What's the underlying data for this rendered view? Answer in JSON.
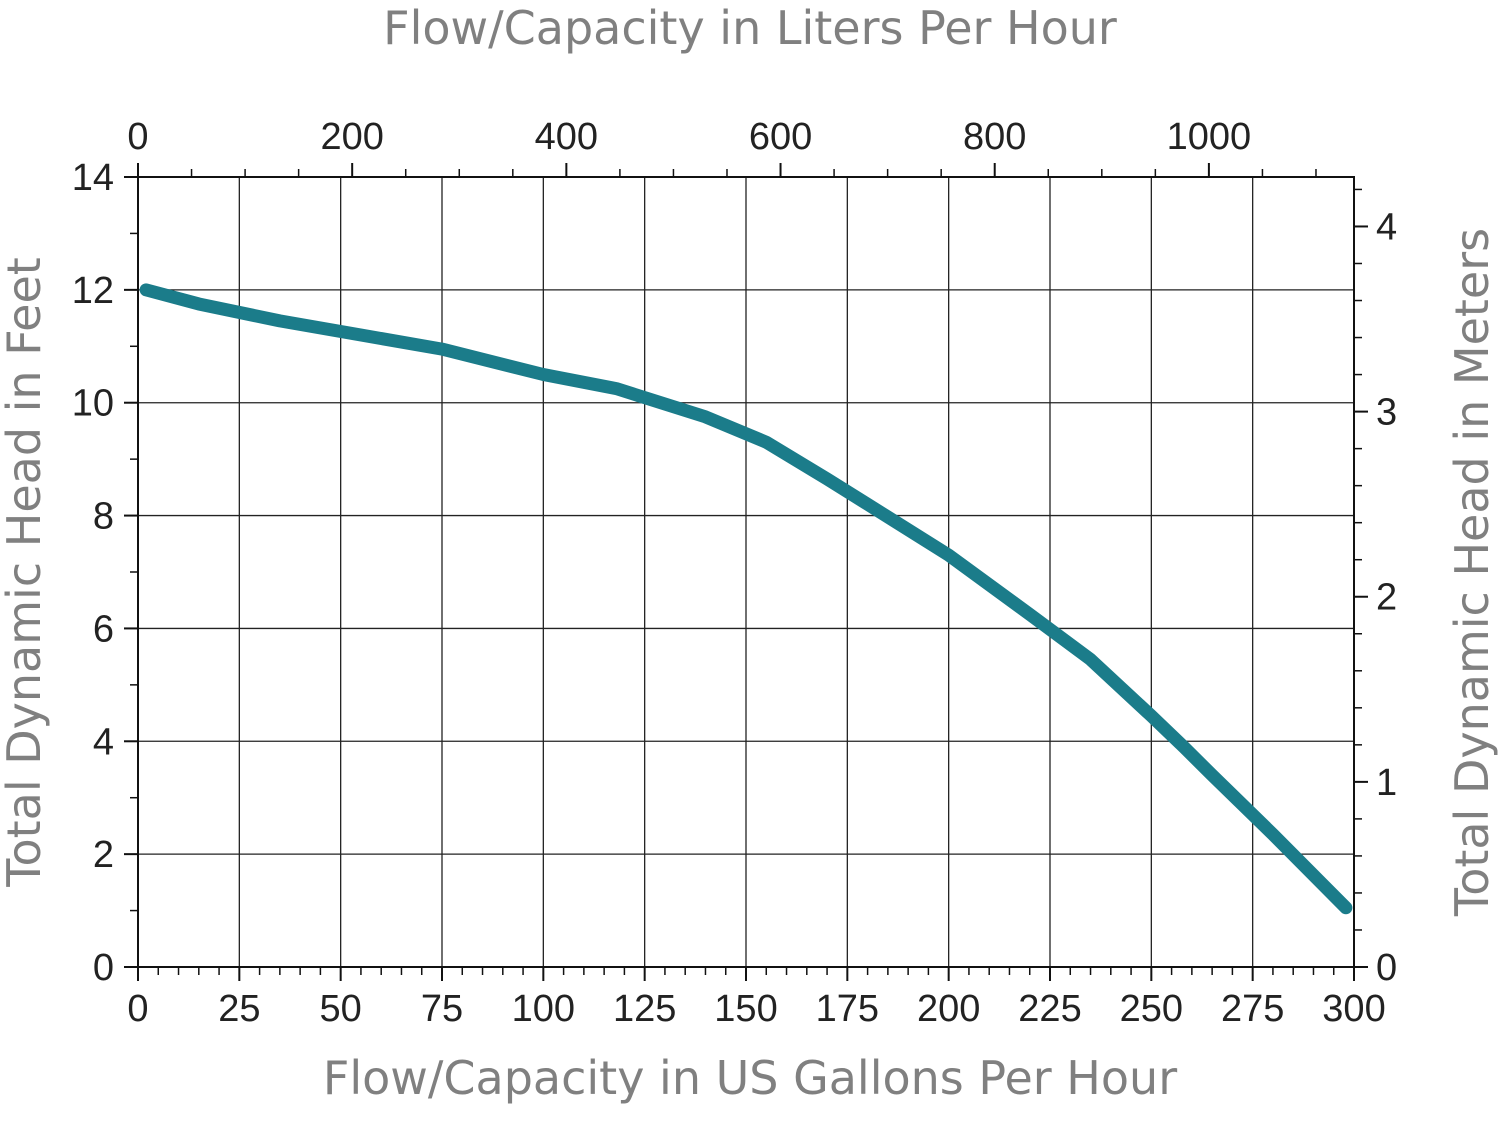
{
  "chart_data": {
    "type": "line",
    "title": "",
    "xlabel": "Flow/Capacity in US Gallons Per Hour",
    "ylabel": "Total Dynamic Head in Feet",
    "x2label": "Flow/Capacity in Liters Per Hour",
    "y2label": "Total Dynamic Head in Meters",
    "xlim": [
      0,
      300
    ],
    "ylim": [
      0,
      14
    ],
    "x_ticks": [
      "0",
      "25",
      "50",
      "75",
      "100",
      "125",
      "150",
      "175",
      "200",
      "225",
      "250",
      "275",
      "300"
    ],
    "y_ticks": [
      "0",
      "2",
      "4",
      "6",
      "8",
      "10",
      "12",
      "14"
    ],
    "x2_ticks": [
      "0",
      "200",
      "400",
      "600",
      "800",
      "1000"
    ],
    "y2_ticks": [
      "0",
      "1",
      "2",
      "3",
      "4"
    ],
    "x2_unit_per_x": 3.785,
    "y2_unit_per_y": 0.3048,
    "grid": true,
    "series": [
      {
        "color": "#1b7c8a",
        "x": [
          2,
          15,
          35,
          55,
          75,
          100,
          118,
          140,
          155,
          170,
          180,
          200,
          220,
          235,
          250,
          258,
          265,
          280,
          298
        ],
        "y": [
          12.0,
          11.75,
          11.45,
          11.2,
          10.95,
          10.5,
          10.25,
          9.75,
          9.3,
          8.65,
          8.2,
          7.3,
          6.25,
          5.45,
          4.45,
          3.9,
          3.4,
          2.35,
          1.05
        ]
      }
    ]
  }
}
